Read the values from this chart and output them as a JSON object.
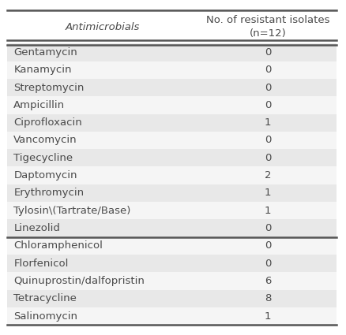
{
  "col1_header": "Antimicrobials",
  "col2_header": "No. of resistant isolates\n(n=12)",
  "rows": [
    [
      "Gentamycin",
      "0"
    ],
    [
      "Kanamycin",
      "0"
    ],
    [
      "Streptomycin",
      "0"
    ],
    [
      "Ampicillin",
      "0"
    ],
    [
      "Ciprofloxacin",
      "1"
    ],
    [
      "Vancomycin",
      "0"
    ],
    [
      "Tigecycline",
      "0"
    ],
    [
      "Daptomycin",
      "2"
    ],
    [
      "Erythromycin",
      "1"
    ],
    [
      "Tylosin\\(Tartrate/Base)",
      "1"
    ],
    [
      "Linezolid",
      "0"
    ],
    [
      "Chloramphenicol",
      "0"
    ],
    [
      "Florfenicol",
      "0"
    ],
    [
      "Quinuprostin/dalfopristin",
      "6"
    ],
    [
      "Tetracycline",
      "8"
    ],
    [
      "Salinomycin",
      "1"
    ]
  ],
  "bg_color_odd": "#e8e8e8",
  "bg_color_even": "#f5f5f5",
  "text_color": "#4a4a4a",
  "line_color": "#555555",
  "font_size": 9.5,
  "header_font_size": 9.5
}
